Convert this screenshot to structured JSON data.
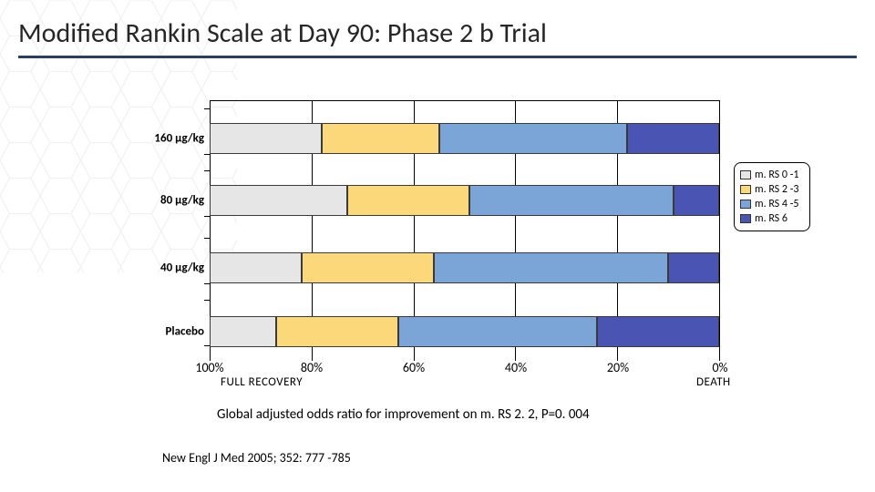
{
  "title": "Modified Rankin Scale at Day 90: Phase 2 b Trial",
  "chart": {
    "type": "stacked_bar_horizontal",
    "categories": [
      "160 µg/kg",
      "80 µg/kg",
      "40 µg/kg",
      "Placebo"
    ],
    "series": [
      {
        "name": "m. RS 0 -1",
        "color": "#e6e6e6"
      },
      {
        "name": "m. RS 2 -3",
        "color": "#fbd97a"
      },
      {
        "name": "m. RS 4 -5",
        "color": "#7aa5d6"
      },
      {
        "name": "m. RS 6",
        "color": "#4a55b3"
      }
    ],
    "values": [
      [
        22,
        23,
        37,
        18
      ],
      [
        27,
        24,
        40,
        9
      ],
      [
        18,
        26,
        46,
        10
      ],
      [
        13,
        24,
        39,
        24
      ]
    ],
    "xaxis": {
      "ticks": [
        "100%",
        "80%",
        "60%",
        "40%",
        "20%",
        "0%"
      ],
      "left_label": "FULL RECOVERY",
      "right_label": "DEATH"
    },
    "plot_border_color": "#000000",
    "background_color": "#ffffff",
    "category_label_fontsize": 13,
    "xaxis_label_fontsize": 14,
    "legend_fontsize": 12
  },
  "footnote": "Global adjusted odds ratio for improvement on m. RS 2. 2, P=0. 004",
  "citation": "New Engl J Med 2005; 352: 777 -785"
}
